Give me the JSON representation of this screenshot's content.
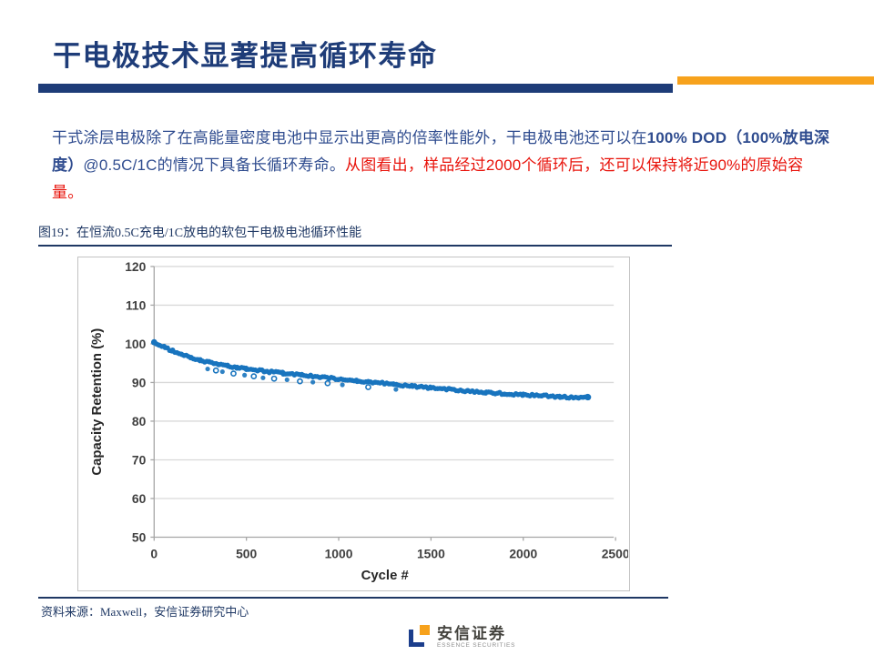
{
  "slide": {
    "title": "干电极技术显著提高循环寿命",
    "body": {
      "seg1": "干式涂层电极除了在高能量密度电池中显示出更高的倍率性能外，干电极电池还可以在",
      "seg2_bold": "100% DOD（100%放电深度）",
      "seg3": "@0.5C/1C的情况下具备长循环寿命。",
      "seg4_red": "从图看出，样品经过2000个循环后，还可以保持将近90%的原始容量。"
    },
    "figure_caption": "图19：在恒流0.5C充电/1C放电的软包干电极电池循环性能",
    "source": "资料来源：Maxwell，安信证券研究中心",
    "logo": {
      "cn": "安信证券",
      "en": "ESSENCE SECURITIES"
    },
    "colors": {
      "navy": "#1E3C78",
      "body_navy": "#2F4C8F",
      "orange": "#F7A21C",
      "red": "#E8130B",
      "curve_blue": "#1874BE",
      "grid": "#D9D9D9",
      "axis": "#A6A6A6",
      "tick_text": "#404040",
      "chart_border": "#C3C3C3"
    }
  },
  "chart_data": {
    "type": "scatter",
    "title": "",
    "xlabel": "Cycle #",
    "ylabel": "Capacity Retention (%)",
    "xlim": [
      0,
      2500
    ],
    "ylim": [
      50,
      120
    ],
    "x_ticks": [
      0,
      500,
      1000,
      1500,
      2000,
      2500
    ],
    "y_ticks": [
      50,
      60,
      70,
      80,
      90,
      100,
      110,
      120
    ],
    "grid": true,
    "legend": "none",
    "marker_color": "#1874BE",
    "series": [
      {
        "name": "capacity_retention",
        "points": [
          [
            0,
            100.4
          ],
          [
            30,
            99.7
          ],
          [
            60,
            99.0
          ],
          [
            100,
            98.2
          ],
          [
            150,
            97.3
          ],
          [
            200,
            96.5
          ],
          [
            250,
            95.8
          ],
          [
            300,
            95.2
          ],
          [
            350,
            94.7
          ],
          [
            400,
            94.3
          ],
          [
            450,
            93.9
          ],
          [
            500,
            93.5
          ],
          [
            600,
            92.9
          ],
          [
            700,
            92.4
          ],
          [
            800,
            91.9
          ],
          [
            900,
            91.4
          ],
          [
            1000,
            90.9
          ],
          [
            1100,
            90.4
          ],
          [
            1200,
            90.0
          ],
          [
            1300,
            89.5
          ],
          [
            1400,
            89.0
          ],
          [
            1500,
            88.6
          ],
          [
            1600,
            88.2
          ],
          [
            1700,
            87.8
          ],
          [
            1800,
            87.4
          ],
          [
            1900,
            87.1
          ],
          [
            2000,
            86.8
          ],
          [
            2100,
            86.6
          ],
          [
            2200,
            86.3
          ],
          [
            2300,
            86.1
          ],
          [
            2350,
            86.2
          ]
        ]
      }
    ],
    "outliers": [
      [
        290,
        93.5
      ],
      [
        335,
        93.1
      ],
      [
        370,
        92.8
      ],
      [
        430,
        92.3
      ],
      [
        490,
        91.9
      ],
      [
        540,
        91.6
      ],
      [
        590,
        91.2
      ],
      [
        650,
        91.0
      ],
      [
        720,
        90.7
      ],
      [
        790,
        90.3
      ],
      [
        860,
        90.1
      ],
      [
        940,
        89.8
      ],
      [
        1020,
        89.4
      ],
      [
        1160,
        88.8
      ],
      [
        1310,
        88.2
      ]
    ]
  }
}
